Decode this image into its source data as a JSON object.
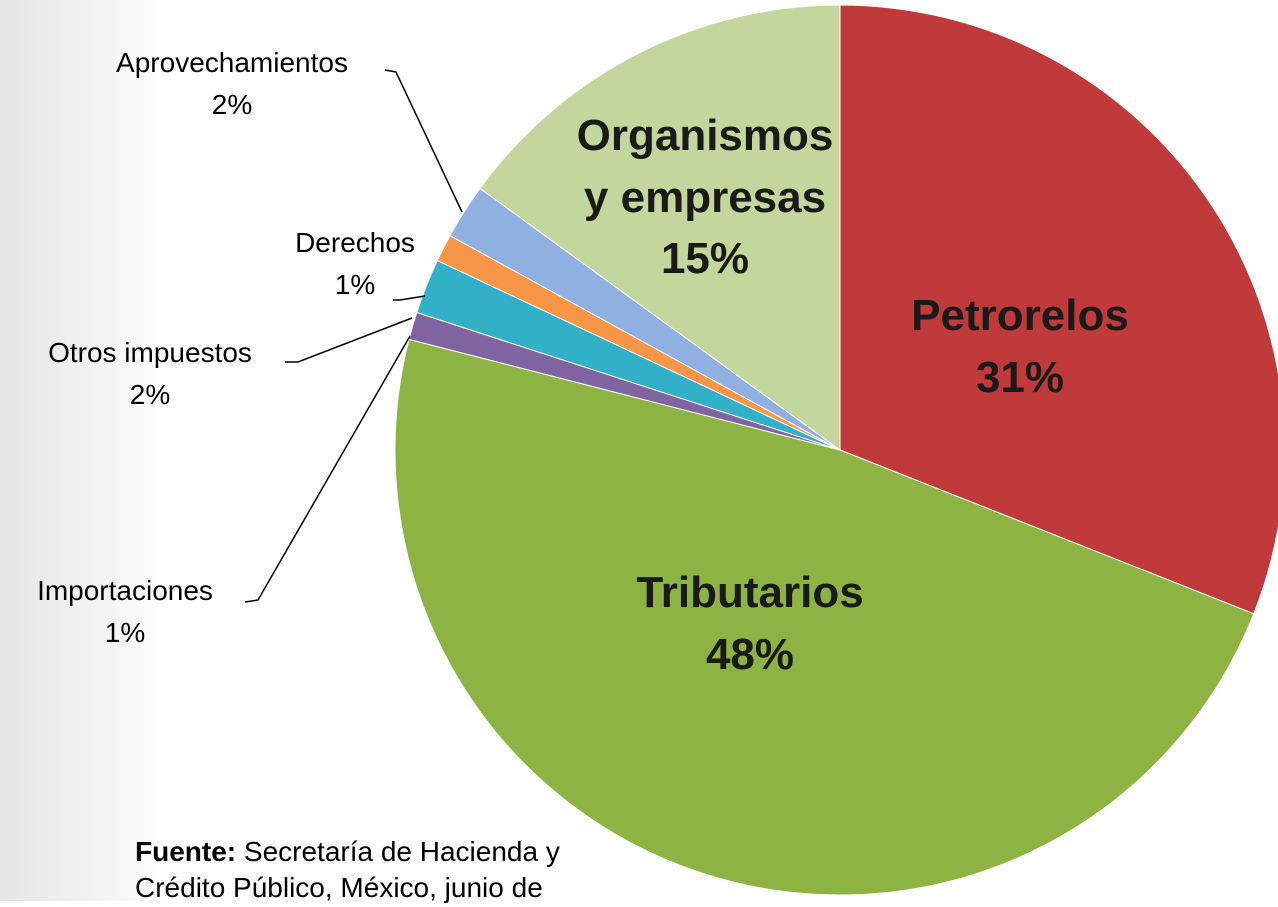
{
  "chart_data": {
    "type": "pie",
    "categories": [
      "Petrorelos",
      "Tributarios",
      "Importaciones",
      "Otros impuestos",
      "Derechos",
      "Aprovechamientos",
      "Organismos y empresas"
    ],
    "values": [
      31,
      48,
      1,
      2,
      1,
      2,
      15
    ],
    "value_labels": [
      "31%",
      "48%",
      "1%",
      "2%",
      "1%",
      "2%",
      "15%"
    ],
    "colors": [
      "#c0393b",
      "#8db443",
      "#8064a2",
      "#31b0c8",
      "#f79646",
      "#8fb0e0",
      "#c3d69b"
    ],
    "source_label": "Fuente:",
    "source": "Secretaría de Hacienda y Crédito Público, México, junio de"
  }
}
